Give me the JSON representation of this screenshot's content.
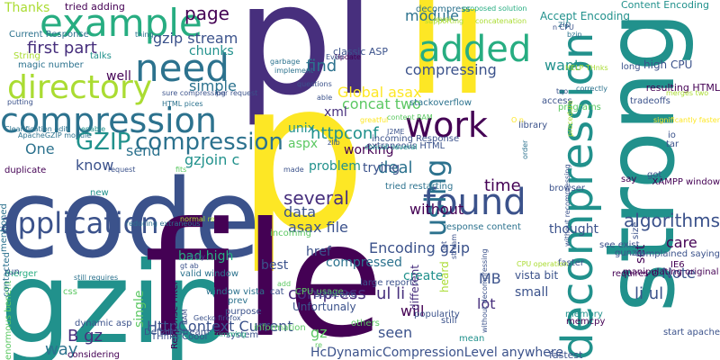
{
  "words": [
    "pl",
    "li",
    "p",
    "code",
    "gzip",
    "file",
    "strong",
    "compression",
    "decompression",
    "application",
    "directory",
    "need",
    "example",
    "added",
    "found",
    "using",
    "work",
    "GZIP",
    "compression",
    "several",
    "algorithms",
    "first part",
    "page",
    "chunks",
    "gzip stream",
    "module",
    "Accept Encoding",
    "Content Encoding",
    "want",
    "find",
    "compressing",
    "Global asax",
    "concat two",
    "xml",
    "unix",
    "aspx",
    "One",
    "know",
    "send",
    "gzjoin c",
    "simple",
    "well",
    "time",
    "httpconf",
    "data",
    "asax file",
    "href",
    "Encoding gzip",
    "compressed",
    "without",
    "ul li",
    "compress",
    "will",
    "seen",
    "create",
    "lot",
    "li ul",
    "Note",
    "care",
    "thought",
    "HttpContext Current",
    "B gz",
    "gz",
    "HcDynamicCompressionLevel anywhere",
    "set",
    "MB",
    "best",
    "deal",
    "problem",
    "trying",
    "working",
    "Thanks",
    "tried adding",
    "magic number",
    "Current Response",
    "String",
    "talks",
    "classic ASP",
    "stackoverflow",
    "high CPU",
    "long",
    "resulting HTML",
    "IE6",
    "start apache",
    "memcpy",
    "memory",
    "small",
    "fastest",
    "vista bit",
    "XAMPP window",
    "window vista",
    "valid window",
    "bad high",
    "single",
    "way",
    "system",
    "DeflateStream",
    "THnks Coool",
    "dynamic asp",
    "css",
    "merger",
    "duplicate",
    "considering",
    "enormous benefit",
    "run",
    "new",
    "Response Filter",
    "incoming",
    "incoming Response",
    "content RAM",
    "greatful",
    "Unfortunaly",
    "CPU usage",
    "others",
    "large reports",
    "popularity",
    "different",
    "heard",
    "mean",
    "still",
    "zlib",
    "extraneous HTML",
    "J2ME",
    "decompress",
    "proposed solution",
    "concatenation",
    "supporting",
    "Update",
    "Even",
    "garbage",
    "implement",
    "questions",
    "able",
    "made",
    "trimming",
    "Gecko firefox",
    "purpose",
    "information",
    "tradeoffs",
    "access",
    "correctly",
    "programs",
    "library",
    "order",
    "browser",
    "say",
    "got",
    "see exist",
    "faster",
    "requires O",
    "manipulating original",
    "gunzip",
    "size",
    "complained saying",
    "io",
    "tar",
    "zip",
    "bzip",
    "HELP THnks",
    "level",
    "putting",
    "enable",
    "ApacheGZIP module",
    "Clearification edit",
    "mentioned",
    "contacted",
    "reducing extraneous",
    "sure compressing",
    "per request",
    "HTML pices",
    "thing",
    "request",
    "fits",
    "still requires",
    "normal re",
    "gt ab",
    "Unity",
    "prev",
    "cat",
    "someone",
    "re",
    "add",
    "RAM",
    "concat several",
    "response content",
    "tried restarting",
    "net",
    "stream",
    "procedure",
    "without recompressing",
    "without decompressing",
    "CPU operation",
    "significantly faster",
    "merges two",
    "n CPU",
    "tqo",
    "O n",
    "nt",
    "ll"
  ],
  "colors": {
    "c1": "#440154",
    "c2": "#472f7d",
    "c3": "#3b528b",
    "c4": "#2c728e",
    "c5": "#21918c",
    "c6": "#27ad81",
    "c7": "#5cc863",
    "c8": "#aadc32",
    "c9": "#fde725",
    "c10": "#dfe318"
  }
}
